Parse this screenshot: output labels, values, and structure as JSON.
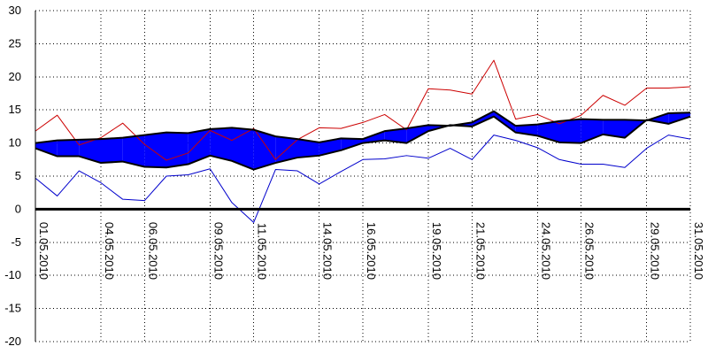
{
  "chart_data": {
    "type": "line",
    "title": "",
    "xlabel": "",
    "ylabel": "",
    "ylim": [
      -20,
      30
    ],
    "y_ticks": [
      30,
      25,
      20,
      15,
      10,
      5,
      0,
      -5,
      -10,
      -15,
      -20
    ],
    "x_tick_labels": [
      "01.05.2010",
      "04.05.2010",
      "06.05.2010",
      "09.05.2010",
      "11.05.2010",
      "14.05.2010",
      "16.05.2010",
      "19.05.2010",
      "21.05.2010",
      "24.05.2010",
      "26.05.2010",
      "29.05.2010",
      "31.05.2010"
    ],
    "x_tick_days": [
      1,
      4,
      6,
      9,
      11,
      14,
      16,
      19,
      21,
      24,
      26,
      29,
      31
    ],
    "grid": true,
    "legend": "none",
    "days": [
      1,
      2,
      3,
      4,
      5,
      6,
      7,
      8,
      9,
      10,
      11,
      12,
      13,
      14,
      15,
      16,
      17,
      18,
      19,
      20,
      21,
      22,
      23,
      24,
      25,
      26,
      27,
      28,
      29,
      30,
      31
    ],
    "series": [
      {
        "role": "max",
        "color": "#cc0000",
        "values": [
          11.8,
          14.2,
          9.7,
          10.8,
          13.0,
          9.8,
          7.4,
          8.5,
          11.9,
          10.4,
          12.2,
          7.5,
          10.5,
          12.3,
          12.2,
          13.1,
          14.3,
          12.0,
          18.2,
          18.0,
          17.4,
          22.5,
          13.6,
          14.3,
          12.9,
          14.2,
          17.2,
          15.7,
          18.3,
          18.3,
          18.5
        ]
      },
      {
        "role": "min",
        "color": "#0000cc",
        "values": [
          4.7,
          2.0,
          5.8,
          4.0,
          1.5,
          1.3,
          5.0,
          5.2,
          6.1,
          1.0,
          -2.0,
          6.0,
          5.8,
          3.8,
          5.7,
          7.5,
          7.6,
          8.1,
          7.7,
          9.2,
          7.5,
          11.2,
          10.4,
          9.3,
          7.5,
          6.8,
          6.8,
          6.3,
          9.2,
          11.2,
          10.6
        ]
      },
      {
        "role": "band-upper",
        "color": "#000000",
        "values": [
          10.0,
          10.4,
          10.5,
          10.6,
          10.8,
          11.2,
          11.6,
          11.5,
          12.1,
          12.3,
          12.0,
          11.0,
          10.6,
          10.1,
          10.7,
          10.6,
          11.8,
          12.2,
          12.7,
          12.6,
          13.1,
          14.8,
          12.6,
          12.8,
          13.3,
          13.6,
          13.5,
          13.5,
          13.4,
          14.5,
          14.6
        ]
      },
      {
        "role": "band-lower",
        "color": "#000000",
        "values": [
          9.2,
          8.0,
          8.0,
          7.0,
          7.2,
          6.4,
          6.3,
          6.8,
          8.1,
          7.3,
          6.0,
          7.0,
          7.8,
          8.1,
          8.9,
          10.0,
          10.4,
          10.0,
          11.8,
          12.7,
          12.5,
          14.0,
          11.6,
          11.1,
          10.1,
          10.0,
          11.3,
          10.8,
          13.5,
          12.9,
          14.0
        ]
      }
    ],
    "colors": {
      "band_fill_normal": "#0000ff",
      "band_fill_inverted": "#ff0000",
      "zero_line": "#000000",
      "grid": "#000000"
    }
  }
}
